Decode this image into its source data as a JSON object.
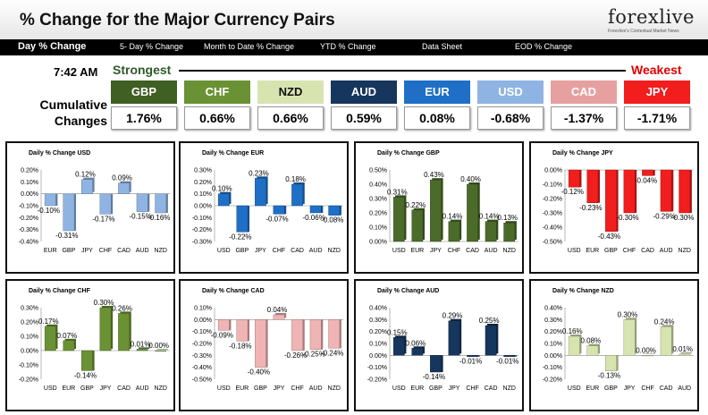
{
  "header": {
    "title": "% Change for the Major Currency Pairs",
    "logo_text": "forexlive",
    "logo_tagline": "Forexlive's Contextual Market News"
  },
  "nav": [
    {
      "label": "Day % Change"
    },
    {
      "label": "5- Day % Change"
    },
    {
      "label": "Month to Date % Change"
    },
    {
      "label": "YTD % Change"
    },
    {
      "label": "Data Sheet"
    },
    {
      "label": "EOD % Change"
    }
  ],
  "summary": {
    "time": "7:42 AM",
    "strongest_label": "Strongest",
    "weakest_label": "Weakest",
    "cumulative_label": "Cumulative Changes",
    "tiles": [
      {
        "code": "GBP",
        "value": "1.76%",
        "bg": "#3f5f23",
        "fg": "#ffffff"
      },
      {
        "code": "CHF",
        "value": "0.66%",
        "bg": "#6a9234",
        "fg": "#ffffff"
      },
      {
        "code": "NZD",
        "value": "0.66%",
        "bg": "#d7e4b0",
        "fg": "#111111"
      },
      {
        "code": "AUD",
        "value": "0.59%",
        "bg": "#17365d",
        "fg": "#ffffff"
      },
      {
        "code": "EUR",
        "value": "0.08%",
        "bg": "#1f6fc6",
        "fg": "#ffffff"
      },
      {
        "code": "USD",
        "value": "-0.68%",
        "bg": "#8fb4e3",
        "fg": "#ffffff"
      },
      {
        "code": "CAD",
        "value": "-1.37%",
        "bg": "#e6a0a0",
        "fg": "#ffffff"
      },
      {
        "code": "JPY",
        "value": "-1.71%",
        "bg": "#f21d1d",
        "fg": "#ffffff"
      }
    ]
  },
  "chart_data": [
    {
      "type": "bar",
      "title": "Daily % Change USD",
      "color": "#8fb4e3",
      "categories": [
        "EUR",
        "GBP",
        "JPY",
        "CHF",
        "CAD",
        "AUD",
        "NZD"
      ],
      "values": [
        -0.1,
        -0.31,
        0.12,
        -0.17,
        0.09,
        -0.15,
        -0.16
      ],
      "labels": [
        "-0.10%",
        "-0.31%",
        "0.12%",
        "-0.17%",
        "0.09%",
        "-0.15%",
        "-0.16%"
      ],
      "ylim": [
        -0.4,
        0.2
      ],
      "ticks": [
        "0.20%",
        "0.10%",
        "0.00%",
        "-0.10%",
        "-0.20%",
        "-0.30%",
        "-0.40%"
      ]
    },
    {
      "type": "bar",
      "title": "Daily % Change EUR",
      "color": "#1f6fc6",
      "categories": [
        "USD",
        "GBP",
        "JPY",
        "CHF",
        "CAD",
        "AUD",
        "NZD"
      ],
      "values": [
        0.1,
        -0.22,
        0.23,
        -0.07,
        0.18,
        -0.06,
        -0.08
      ],
      "labels": [
        "0.10%",
        "-0.22%",
        "0.23%",
        "-0.07%",
        "0.18%",
        "-0.06%",
        "-0.08%"
      ],
      "ylim": [
        -0.3,
        0.3
      ],
      "ticks": [
        "0.30%",
        "0.20%",
        "0.10%",
        "0.00%",
        "-0.10%",
        "-0.20%",
        "-0.30%"
      ]
    },
    {
      "type": "bar",
      "title": "Daily % Change GBP",
      "color": "#4a6b2a",
      "categories": [
        "USD",
        "EUR",
        "JPY",
        "CHF",
        "CAD",
        "AUD",
        "NZD"
      ],
      "values": [
        0.31,
        0.22,
        0.43,
        0.14,
        0.4,
        0.14,
        0.13
      ],
      "labels": [
        "0.31%",
        "0.22%",
        "0.43%",
        "0.14%",
        "0.40%",
        "0.14%",
        "0.13%"
      ],
      "ylim": [
        0,
        0.5
      ],
      "ticks": [
        "0.50%",
        "0.40%",
        "0.30%",
        "0.20%",
        "0.10%",
        "0.00%"
      ]
    },
    {
      "type": "bar",
      "title": "Daily % Change JPY",
      "color": "#f21d1d",
      "categories": [
        "USD",
        "EUR",
        "GBP",
        "CHF",
        "CAD",
        "AUD",
        "NZD"
      ],
      "values": [
        -0.12,
        -0.23,
        -0.43,
        -0.3,
        -0.04,
        -0.29,
        -0.3
      ],
      "labels": [
        "-0.12%",
        "-0.23%",
        "-0.43%",
        "-0.30%",
        "-0.04%",
        "-0.29%",
        "-0.30%"
      ],
      "ylim": [
        -0.5,
        0
      ],
      "ticks": [
        "0.00%",
        "-0.10%",
        "-0.20%",
        "-0.30%",
        "-0.40%",
        "-0.50%"
      ]
    },
    {
      "type": "bar",
      "title": "Daily % Change CHF",
      "color": "#6a9234",
      "categories": [
        "USD",
        "EUR",
        "GBP",
        "JPY",
        "CAD",
        "AUD",
        "NZD"
      ],
      "values": [
        0.17,
        0.07,
        -0.14,
        0.3,
        0.26,
        0.01,
        0.0
      ],
      "labels": [
        "0.17%",
        "0.07%",
        "-0.14%",
        "0.30%",
        "0.26%",
        "0.01%",
        "0.00%"
      ],
      "ylim": [
        -0.2,
        0.3
      ],
      "ticks": [
        "0.30%",
        "0.20%",
        "0.10%",
        "0.00%",
        "-0.10%",
        "-0.20%"
      ]
    },
    {
      "type": "bar",
      "title": "Daily % Change CAD",
      "color": "#f0b4b4",
      "categories": [
        "USD",
        "EUR",
        "GBP",
        "JPY",
        "CHF",
        "AUD",
        "NZD"
      ],
      "values": [
        -0.09,
        -0.18,
        -0.4,
        0.04,
        -0.26,
        -0.25,
        -0.24
      ],
      "labels": [
        "-0.09%",
        "-0.18%",
        "-0.40%",
        "0.04%",
        "-0.26%",
        "-0.25%",
        "-0.24%"
      ],
      "ylim": [
        -0.5,
        0.1
      ],
      "ticks": [
        "0.10%",
        "0.00%",
        "-0.10%",
        "-0.20%",
        "-0.30%",
        "-0.40%",
        "-0.50%"
      ]
    },
    {
      "type": "bar",
      "title": "Daily % Change AUD",
      "color": "#17365d",
      "categories": [
        "USD",
        "EUR",
        "GBP",
        "JPY",
        "CHF",
        "CAD",
        "NZD"
      ],
      "values": [
        0.15,
        0.06,
        -0.14,
        0.29,
        -0.01,
        0.25,
        -0.01
      ],
      "labels": [
        "0.15%",
        "0.06%",
        "-0.14%",
        "0.29%",
        "-0.01%",
        "0.25%",
        "-0.01%"
      ],
      "ylim": [
        -0.2,
        0.4
      ],
      "ticks": [
        "0.40%",
        "0.30%",
        "0.20%",
        "0.10%",
        "0.00%",
        "-0.10%",
        "-0.20%"
      ]
    },
    {
      "type": "bar",
      "title": "Daily % Change NZD",
      "color": "#d7e4b0",
      "categories": [
        "USD",
        "EUR",
        "GBP",
        "JPY",
        "CHF",
        "CAD",
        "AUD"
      ],
      "values": [
        0.16,
        0.08,
        -0.13,
        0.3,
        0.0,
        0.24,
        0.01
      ],
      "labels": [
        "0.16%",
        "0.08%",
        "-0.13%",
        "0.30%",
        "0.00%",
        "0.24%",
        "0.01%"
      ],
      "ylim": [
        -0.2,
        0.4
      ],
      "ticks": [
        "0.40%",
        "0.30%",
        "0.20%",
        "0.10%",
        "0.00%",
        "-0.10%",
        "-0.20%"
      ]
    }
  ]
}
